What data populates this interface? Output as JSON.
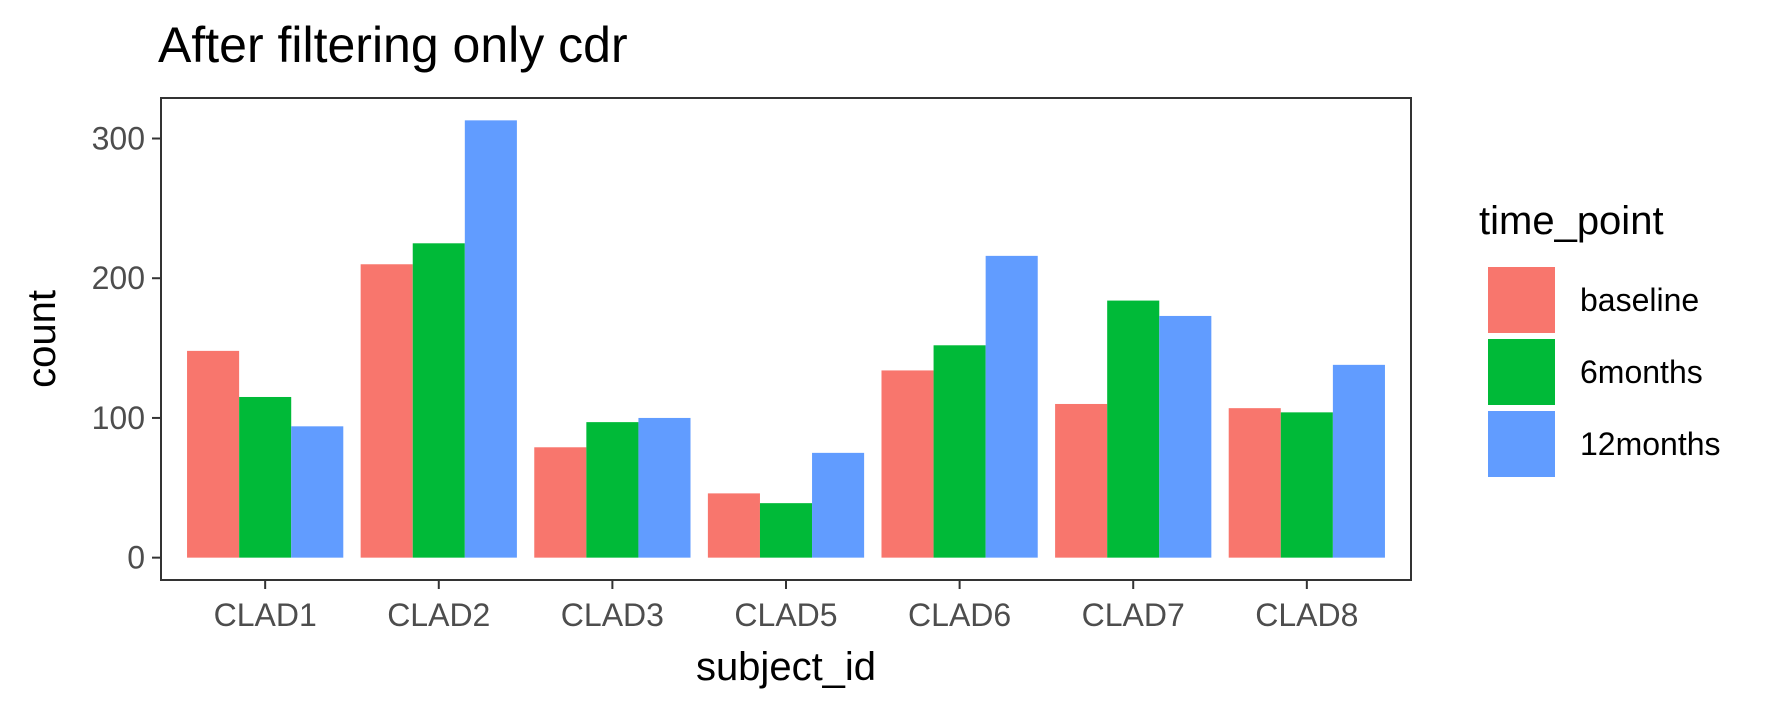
{
  "chart_data": {
    "type": "bar",
    "title": "After filtering only cdr",
    "xlabel": "subject_id",
    "ylabel": "count",
    "categories": [
      "CLAD1",
      "CLAD2",
      "CLAD3",
      "CLAD5",
      "CLAD6",
      "CLAD7",
      "CLAD8"
    ],
    "series": [
      {
        "name": "baseline",
        "color": "#F8766D",
        "values": [
          148,
          210,
          79,
          46,
          134,
          110,
          107
        ]
      },
      {
        "name": "6months",
        "color": "#00BA38",
        "values": [
          115,
          225,
          97,
          39,
          152,
          184,
          104
        ]
      },
      {
        "name": "12months",
        "color": "#619CFF",
        "values": [
          94,
          313,
          100,
          75,
          216,
          173,
          138
        ]
      }
    ],
    "ylim": [
      -16,
      329
    ],
    "yticks": [
      0,
      100,
      200,
      300
    ],
    "legend": {
      "title": "time_point",
      "position": "right"
    },
    "grid": false
  }
}
